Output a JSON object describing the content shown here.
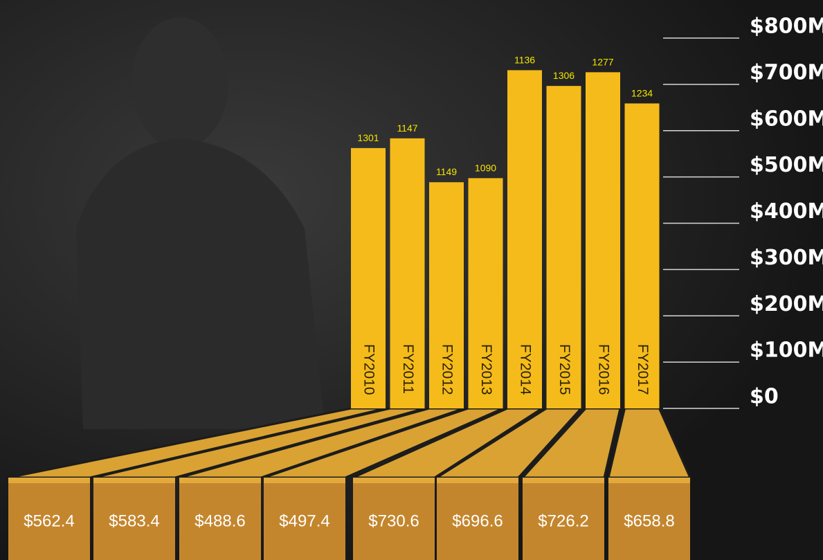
{
  "chart_data": {
    "type": "bar",
    "categories": [
      "FY2010",
      "FY2011",
      "FY2012",
      "FY2013",
      "FY2014",
      "FY2015",
      "FY2016",
      "FY2017"
    ],
    "values": [
      562.4,
      583.4,
      488.6,
      497.4,
      730.6,
      696.6,
      726.2,
      658.8
    ],
    "value_labels": [
      "$562.4",
      "$583.4",
      "$488.6",
      "$497.4",
      "$730.6",
      "$696.6",
      "$726.2",
      "$658.8"
    ],
    "bar_top_labels": [
      1301,
      1147,
      1149,
      1090,
      1136,
      1306,
      1277,
      1234
    ],
    "color": "#f5bb1a",
    "ylim": [
      0,
      800
    ],
    "yticks": [
      {
        "value": 0,
        "label": "$0"
      },
      {
        "value": 100,
        "label": "$100M"
      },
      {
        "value": 200,
        "label": "$200M"
      },
      {
        "value": 300,
        "label": "$300M"
      },
      {
        "value": 400,
        "label": "$400M"
      },
      {
        "value": 500,
        "label": "$500M"
      },
      {
        "value": 600,
        "label": "$600M"
      },
      {
        "value": 700,
        "label": "$700M"
      },
      {
        "value": 800,
        "label": "$800M"
      }
    ]
  }
}
